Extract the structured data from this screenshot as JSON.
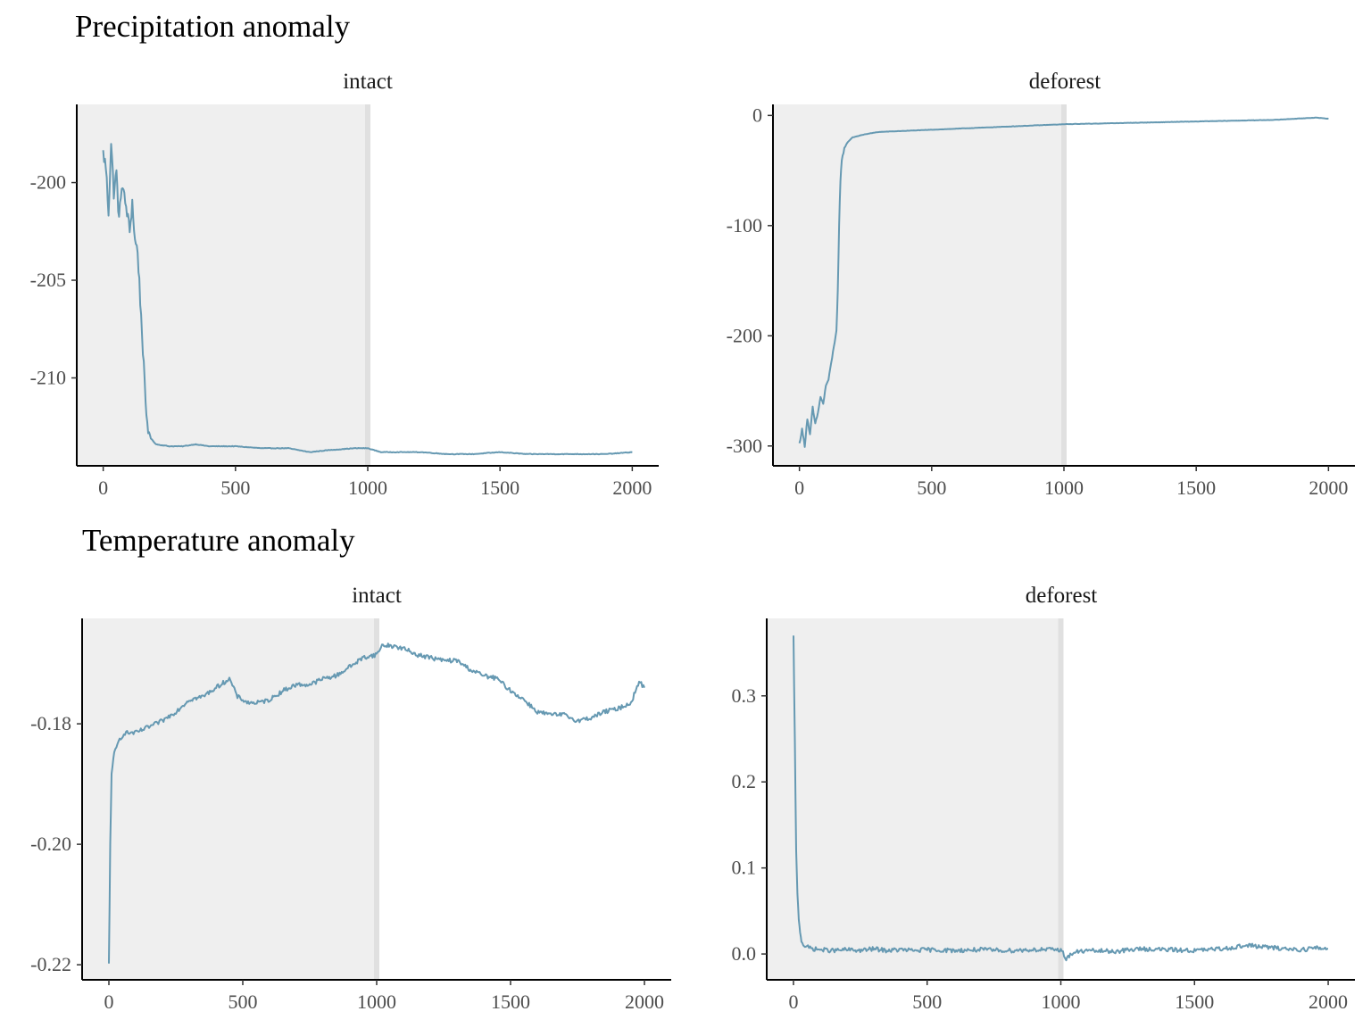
{
  "colors": {
    "line": "#6699b2",
    "shade": "#efefef",
    "shade_edge": "#e0e0e0"
  },
  "sections": [
    {
      "title": "Precipitation anomaly"
    },
    {
      "title": "Temperature anomaly"
    }
  ],
  "chart_data": [
    {
      "type": "line",
      "section": "Precipitation anomaly",
      "panel": "intact",
      "title": "",
      "xlabel": "",
      "ylabel": "",
      "xlim": [
        -100,
        2100
      ],
      "ylim": [
        -214.5,
        -196
      ],
      "xticks": [
        0,
        500,
        1000,
        1500,
        2000
      ],
      "yticks": [
        -200,
        -205,
        -210
      ],
      "ytick_labels": [
        "-200",
        "-205",
        "-210"
      ],
      "shaded_region": [
        0,
        1000
      ],
      "grid": false,
      "x": [
        0,
        10,
        20,
        30,
        40,
        50,
        60,
        70,
        80,
        90,
        100,
        110,
        120,
        130,
        140,
        150,
        160,
        170,
        180,
        200,
        250,
        300,
        350,
        400,
        500,
        600,
        700,
        780,
        850,
        950,
        1000,
        1050,
        1100,
        1200,
        1300,
        1400,
        1500,
        1600,
        1700,
        1800,
        1900,
        2000
      ],
      "y": [
        -198.5,
        -199.2,
        -201.5,
        -198.0,
        -200.5,
        -199.5,
        -202.0,
        -200.0,
        -200.8,
        -201.5,
        -202.5,
        -201.0,
        -203.0,
        -203.5,
        -206.0,
        -208.5,
        -211.5,
        -212.6,
        -213.1,
        -213.4,
        -213.5,
        -213.5,
        -213.4,
        -213.5,
        -213.5,
        -213.6,
        -213.6,
        -213.8,
        -213.7,
        -213.6,
        -213.6,
        -213.8,
        -213.8,
        -213.8,
        -213.9,
        -213.9,
        -213.8,
        -213.9,
        -213.9,
        -213.9,
        -213.9,
        -213.8
      ]
    },
    {
      "type": "line",
      "section": "Precipitation anomaly",
      "panel": "deforest",
      "title": "",
      "xlabel": "",
      "ylabel": "",
      "xlim": [
        -100,
        2100
      ],
      "ylim": [
        -318,
        10
      ],
      "xticks": [
        0,
        500,
        1000,
        1500,
        2000
      ],
      "yticks": [
        0,
        -100,
        -200,
        -300
      ],
      "ytick_labels": [
        "0",
        "-100",
        "-200",
        "-300"
      ],
      "shaded_region": [
        0,
        1000
      ],
      "grid": false,
      "x": [
        0,
        10,
        20,
        30,
        40,
        50,
        60,
        70,
        80,
        90,
        100,
        110,
        120,
        130,
        140,
        145,
        150,
        155,
        160,
        170,
        180,
        200,
        250,
        300,
        400,
        500,
        600,
        700,
        800,
        900,
        1000,
        1200,
        1400,
        1600,
        1800,
        1950,
        2000
      ],
      "y": [
        -298,
        -285,
        -300,
        -275,
        -290,
        -265,
        -280,
        -270,
        -255,
        -262,
        -245,
        -240,
        -225,
        -210,
        -195,
        -160,
        -100,
        -60,
        -40,
        -30,
        -25,
        -20,
        -17,
        -15,
        -14,
        -13,
        -12,
        -11,
        -10,
        -9,
        -8,
        -7,
        -6,
        -5,
        -4,
        -2,
        -3
      ]
    },
    {
      "type": "line",
      "section": "Temperature anomaly",
      "panel": "intact",
      "title": "",
      "xlabel": "",
      "ylabel": "",
      "xlim": [
        -100,
        2100
      ],
      "ylim": [
        -0.2225,
        -0.1625
      ],
      "xticks": [
        0,
        500,
        1000,
        1500,
        2000
      ],
      "yticks": [
        -0.18,
        -0.2,
        -0.22
      ],
      "ytick_labels": [
        "-0.18",
        "-0.20",
        "-0.22"
      ],
      "shaded_region": [
        0,
        1000
      ],
      "grid": false,
      "x": [
        0,
        5,
        10,
        20,
        40,
        60,
        100,
        150,
        200,
        250,
        300,
        350,
        400,
        450,
        480,
        520,
        560,
        600,
        650,
        700,
        750,
        800,
        850,
        900,
        950,
        1000,
        1020,
        1050,
        1100,
        1150,
        1200,
        1250,
        1300,
        1350,
        1400,
        1450,
        1500,
        1550,
        1600,
        1650,
        1700,
        1750,
        1800,
        1850,
        1900,
        1950,
        1980,
        2000
      ],
      "y": [
        -0.22,
        -0.2,
        -0.188,
        -0.185,
        -0.1825,
        -0.1815,
        -0.1815,
        -0.1805,
        -0.1795,
        -0.178,
        -0.176,
        -0.1755,
        -0.174,
        -0.1725,
        -0.1755,
        -0.1765,
        -0.1765,
        -0.176,
        -0.1745,
        -0.1735,
        -0.1735,
        -0.1725,
        -0.172,
        -0.1705,
        -0.169,
        -0.1685,
        -0.167,
        -0.167,
        -0.1675,
        -0.1685,
        -0.169,
        -0.1695,
        -0.1695,
        -0.171,
        -0.172,
        -0.1725,
        -0.1745,
        -0.176,
        -0.178,
        -0.1785,
        -0.1785,
        -0.1795,
        -0.179,
        -0.178,
        -0.1775,
        -0.1765,
        -0.173,
        -0.174
      ]
    },
    {
      "type": "line",
      "section": "Temperature anomaly",
      "panel": "deforest",
      "title": "",
      "xlabel": "",
      "ylabel": "",
      "xlim": [
        -100,
        2100
      ],
      "ylim": [
        -0.03,
        0.39
      ],
      "xticks": [
        0,
        500,
        1000,
        1500,
        2000
      ],
      "yticks": [
        0.3,
        0.2,
        0.1,
        0.0
      ],
      "ytick_labels": [
        "0.3",
        "0.2",
        "0.1",
        "0.0"
      ],
      "shaded_region": [
        0,
        1000
      ],
      "grid": false,
      "x": [
        0,
        5,
        10,
        15,
        20,
        25,
        30,
        40,
        50,
        75,
        100,
        150,
        200,
        250,
        300,
        350,
        400,
        450,
        500,
        600,
        700,
        800,
        900,
        1000,
        1020,
        1050,
        1100,
        1200,
        1300,
        1400,
        1500,
        1600,
        1700,
        1800,
        1900,
        1950,
        2000
      ],
      "y": [
        0.37,
        0.25,
        0.12,
        0.07,
        0.04,
        0.025,
        0.015,
        0.01,
        0.008,
        0.006,
        0.005,
        0.004,
        0.005,
        0.004,
        0.006,
        0.004,
        0.005,
        0.004,
        0.005,
        0.004,
        0.005,
        0.004,
        0.005,
        0.005,
        -0.005,
        0.002,
        0.004,
        0.003,
        0.006,
        0.005,
        0.004,
        0.006,
        0.01,
        0.007,
        0.005,
        0.007,
        0.006
      ]
    }
  ],
  "panels": [
    {
      "strip": "intact"
    },
    {
      "strip": "deforest"
    },
    {
      "strip": "intact"
    },
    {
      "strip": "deforest"
    }
  ],
  "x_tick_labels": [
    "0",
    "500",
    "1000",
    "1500",
    "2000"
  ]
}
